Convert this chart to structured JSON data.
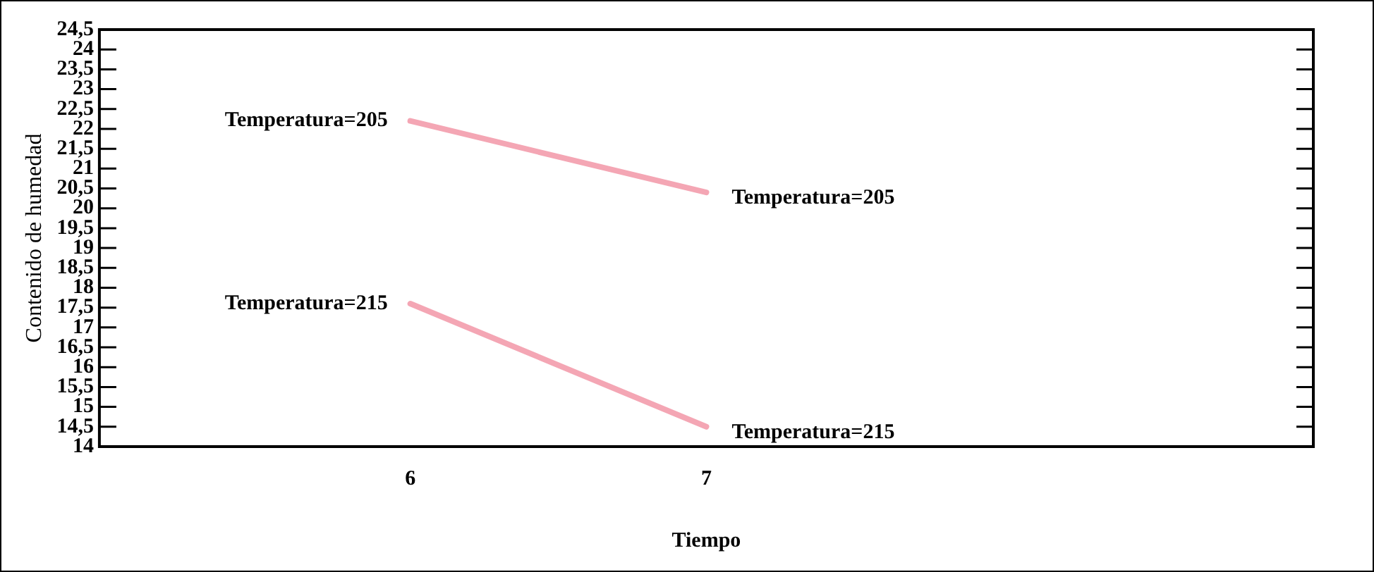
{
  "chart_data": {
    "type": "line",
    "xlabel": "Tiempo",
    "ylabel": "Contenido de humedad",
    "xlim": [
      4.95,
      9.05
    ],
    "xticks": [
      6,
      7
    ],
    "ylim": [
      14,
      24.5
    ],
    "yticks": [
      {
        "value": 14,
        "label": "14"
      },
      {
        "value": 14.5,
        "label": "14,5"
      },
      {
        "value": 15,
        "label": "15"
      },
      {
        "value": 15.5,
        "label": "15,5"
      },
      {
        "value": 16,
        "label": "16"
      },
      {
        "value": 16.5,
        "label": "16,5"
      },
      {
        "value": 17,
        "label": "17"
      },
      {
        "value": 17.5,
        "label": "17,5"
      },
      {
        "value": 18,
        "label": "18"
      },
      {
        "value": 18.5,
        "label": "18,5"
      },
      {
        "value": 19,
        "label": "19"
      },
      {
        "value": 19.5,
        "label": "19,5"
      },
      {
        "value": 20,
        "label": "20"
      },
      {
        "value": 20.5,
        "label": "20,5"
      },
      {
        "value": 21,
        "label": "21"
      },
      {
        "value": 21.5,
        "label": "21,5"
      },
      {
        "value": 22,
        "label": "22"
      },
      {
        "value": 22.5,
        "label": "22,5"
      },
      {
        "value": 23,
        "label": "23"
      },
      {
        "value": 23.5,
        "label": "23,5"
      },
      {
        "value": 24,
        "label": "24"
      },
      {
        "value": 24.5,
        "label": "24,5"
      }
    ],
    "x": [
      6,
      7
    ],
    "series": [
      {
        "name": "Temperatura=205",
        "color": "#f4a6b4",
        "values": [
          22.2,
          20.4
        ]
      },
      {
        "name": "Temperatura=215",
        "color": "#f4a6b4",
        "values": [
          17.6,
          14.5
        ]
      }
    ],
    "grid": false,
    "legend": false,
    "marker": "none",
    "line_style": "solid"
  }
}
